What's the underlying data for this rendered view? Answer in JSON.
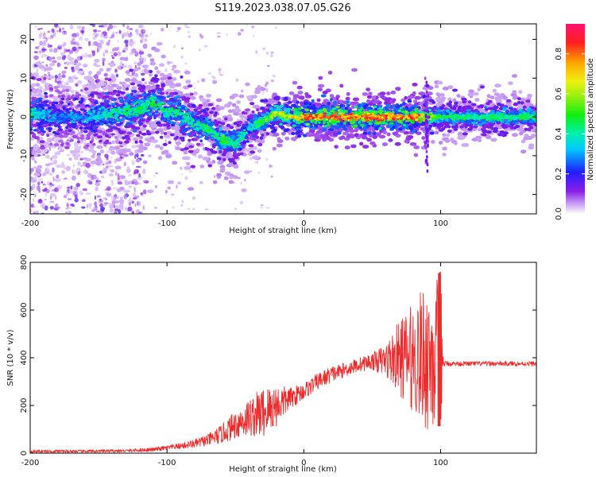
{
  "figure": {
    "title": "S119.2023.038.07.05.G26"
  },
  "chart_data": [
    {
      "type": "heatmap",
      "title": "",
      "xlabel": "Height of straight line (km)",
      "ylabel": "Frequency (Hz)",
      "xlim": [
        -200,
        170
      ],
      "ylim": [
        -25,
        24
      ],
      "xticks": [
        -200,
        -100,
        0,
        100
      ],
      "xtick_labels": [
        "-200",
        "-100",
        "0",
        "100"
      ],
      "yticks": [
        -20,
        -10,
        0,
        10,
        20
      ],
      "ytick_labels": [
        "-20",
        "-10",
        "0",
        "10",
        "20"
      ],
      "colorbar": {
        "label": "Normalized spectral amplitude",
        "range": [
          0,
          0.95
        ],
        "ticks": [
          0,
          0.2,
          0.4,
          0.6,
          0.8
        ],
        "tick_labels": [
          "0.0",
          "0.2",
          "0.4",
          "0.6",
          "0.8"
        ],
        "colormap": "gist_rainbow_r"
      },
      "ridge": {
        "x": [
          -200,
          -180,
          -160,
          -140,
          -120,
          -110,
          -100,
          -90,
          -80,
          -70,
          -60,
          -50,
          -40,
          -30,
          -20,
          -10,
          0,
          20,
          40,
          60,
          80,
          90,
          100,
          120,
          140,
          170
        ],
        "frequency": [
          1,
          0,
          0,
          1,
          2,
          4,
          1,
          1,
          -2,
          -3,
          -6,
          -7,
          -3,
          -1,
          1,
          0,
          0,
          0,
          0,
          0,
          0,
          0,
          0,
          0,
          0,
          0
        ],
        "peak_amplitude": [
          0.45,
          0.3,
          0.35,
          0.45,
          0.5,
          0.5,
          0.45,
          0.5,
          0.45,
          0.5,
          0.55,
          0.5,
          0.4,
          0.55,
          0.65,
          0.7,
          0.9,
          0.9,
          0.9,
          0.9,
          0.9,
          0.7,
          0.5,
          0.5,
          0.5,
          0.5
        ]
      }
    },
    {
      "type": "line",
      "title": "",
      "xlabel": "Height of straight line (km)",
      "ylabel": "SNR (10 * v/v)",
      "xlim": [
        -200,
        170
      ],
      "ylim": [
        0,
        800
      ],
      "xticks": [
        -200,
        -100,
        0,
        100
      ],
      "xtick_labels": [
        "-200",
        "-100",
        "0",
        "100"
      ],
      "yticks": [
        0,
        200,
        400,
        600,
        800
      ],
      "ytick_labels": [
        "0",
        "200",
        "400",
        "600",
        "800"
      ],
      "series": [
        {
          "color": "#ee2a2a",
          "envelope": {
            "x": [
              -200,
              -160,
              -130,
              -110,
              -100,
              -90,
              -80,
              -70,
              -60,
              -50,
              -40,
              -30,
              -20,
              -10,
              0,
              10,
              20,
              30,
              40,
              50,
              60,
              70,
              80,
              90,
              95,
              100,
              102,
              110,
              130,
              150,
              170
            ],
            "mean": [
              8,
              8,
              10,
              15,
              22,
              30,
              40,
              55,
              80,
              120,
              150,
              170,
              200,
              230,
              260,
              300,
              330,
              350,
              370,
              385,
              390,
              400,
              400,
              405,
              410,
              420,
              375,
              375,
              375,
              375,
              375
            ],
            "amplitude": [
              6,
              6,
              6,
              8,
              10,
              12,
              18,
              25,
              40,
              60,
              80,
              110,
              90,
              45,
              35,
              35,
              35,
              30,
              30,
              35,
              70,
              160,
              230,
              320,
              330,
              340,
              12,
              10,
              10,
              10,
              10
            ]
          }
        }
      ]
    }
  ],
  "colors": {
    "line": "#ee2a2a",
    "axes": "#000000",
    "background": "#ffffff"
  }
}
